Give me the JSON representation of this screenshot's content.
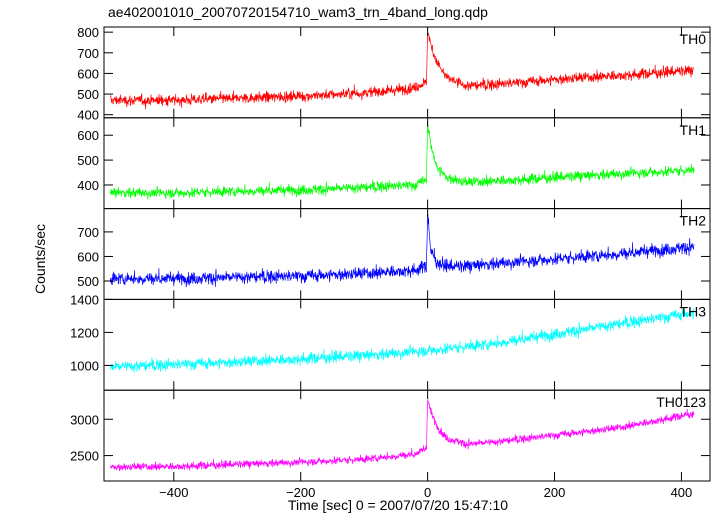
{
  "chart_data": {
    "type": "line",
    "title": "ae402001010_20070720154710_wam3_trn_4band_long.qdp",
    "xlabel": "Time [sec] 0 = 2007/07/20 15:47:10",
    "ylabel": "Counts/sec",
    "xlim": [
      -510,
      445
    ],
    "xticks": [
      -400,
      -200,
      0,
      200,
      400
    ],
    "grid": false,
    "legend": "none",
    "panels": [
      {
        "name": "TH0",
        "color": "#ff0000",
        "ylim": [
          385,
          825
        ],
        "yticks": [
          400,
          500,
          600,
          700,
          800
        ],
        "x": [
          -500,
          -400,
          -300,
          -200,
          -100,
          -20,
          -2,
          0,
          5,
          15,
          30,
          60,
          100,
          200,
          300,
          420
        ],
        "values": [
          470,
          470,
          480,
          490,
          505,
          530,
          560,
          800,
          740,
          650,
          580,
          540,
          545,
          570,
          590,
          615
        ],
        "noise": 22
      },
      {
        "name": "TH1",
        "color": "#00ff00",
        "ylim": [
          305,
          670
        ],
        "yticks": [
          400,
          500,
          600
        ],
        "x": [
          -500,
          -400,
          -300,
          -200,
          -100,
          -20,
          -2,
          0,
          5,
          15,
          30,
          60,
          100,
          200,
          300,
          420
        ],
        "values": [
          370,
          368,
          375,
          380,
          390,
          400,
          420,
          650,
          560,
          470,
          430,
          410,
          415,
          430,
          445,
          460
        ],
        "noise": 18
      },
      {
        "name": "TH2",
        "color": "#0000ff",
        "ylim": [
          425,
          795
        ],
        "yticks": [
          500,
          600,
          700
        ],
        "x": [
          -500,
          -400,
          -300,
          -200,
          -100,
          -20,
          -2,
          0,
          5,
          15,
          30,
          60,
          100,
          200,
          300,
          420
        ],
        "values": [
          510,
          510,
          515,
          520,
          530,
          545,
          560,
          780,
          620,
          575,
          560,
          560,
          570,
          590,
          610,
          640
        ],
        "noise": 22
      },
      {
        "name": "TH3",
        "color": "#00ffff",
        "ylim": [
          850,
          1400
        ],
        "yticks": [
          1000,
          1200,
          1400
        ],
        "x": [
          -500,
          -400,
          -300,
          -200,
          -100,
          0,
          100,
          200,
          300,
          420
        ],
        "values": [
          990,
          1005,
          1020,
          1040,
          1060,
          1090,
          1130,
          1190,
          1250,
          1320
        ],
        "noise": 30
      },
      {
        "name": "TH0123",
        "color": "#ff00ff",
        "ylim": [
          2150,
          3400
        ],
        "yticks": [
          2500,
          3000
        ],
        "x": [
          -500,
          -400,
          -300,
          -200,
          -100,
          -20,
          -2,
          0,
          5,
          15,
          30,
          60,
          100,
          200,
          300,
          420
        ],
        "values": [
          2340,
          2350,
          2380,
          2410,
          2450,
          2520,
          2600,
          3270,
          3100,
          2900,
          2740,
          2660,
          2680,
          2780,
          2880,
          3080
        ],
        "noise": 45
      }
    ]
  }
}
